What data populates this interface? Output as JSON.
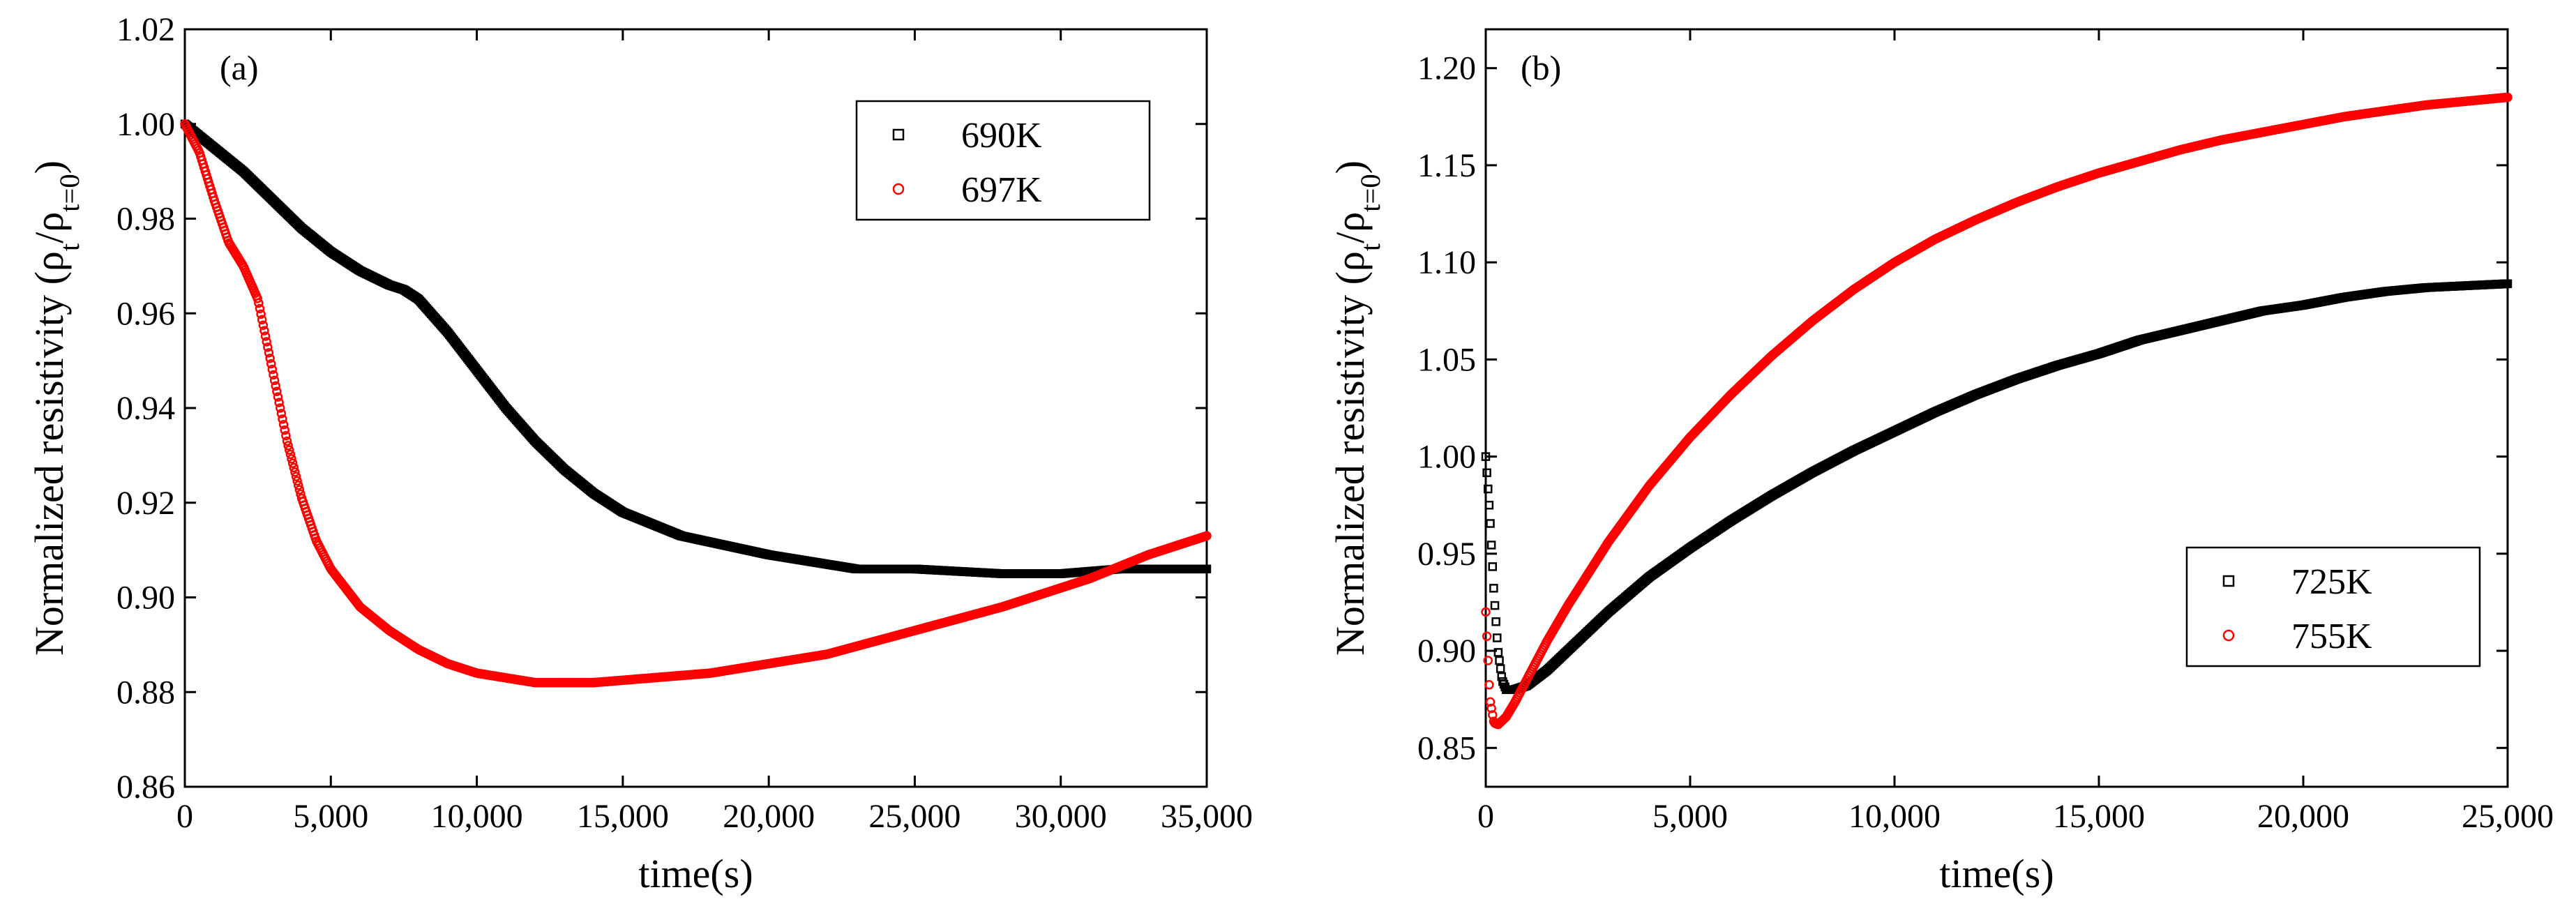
{
  "chart_data": [
    {
      "type": "scatter",
      "panel_label": "(a)",
      "xlabel": "time(s)",
      "ylabel": "Normalized resistivity (ρt/ρt=0)",
      "xlim": [
        0,
        35000
      ],
      "ylim": [
        0.86,
        1.02
      ],
      "x_ticks": [
        0,
        5000,
        10000,
        15000,
        20000,
        25000,
        30000,
        35000
      ],
      "x_tick_labels": [
        "0",
        "5,000",
        "10,000",
        "15,000",
        "20,000",
        "25,000",
        "30,000",
        "35,000"
      ],
      "y_ticks": [
        0.86,
        0.88,
        0.9,
        0.92,
        0.94,
        0.96,
        0.98,
        1.0,
        1.02
      ],
      "y_tick_labels": [
        "0.86",
        "0.88",
        "0.90",
        "0.92",
        "0.94",
        "0.96",
        "0.98",
        "1.00",
        "1.02"
      ],
      "legend_position": "top-right",
      "grid": false,
      "series": [
        {
          "name": "690K",
          "marker": "square",
          "color": "#000000",
          "x": [
            0,
            1000,
            2000,
            3000,
            4000,
            5000,
            6000,
            7000,
            7500,
            8000,
            9000,
            10000,
            11000,
            12000,
            13000,
            14000,
            15000,
            17000,
            20000,
            23000,
            25000,
            28000,
            30000,
            32000,
            35000
          ],
          "y": [
            1.0,
            0.995,
            0.99,
            0.984,
            0.978,
            0.973,
            0.969,
            0.966,
            0.965,
            0.963,
            0.956,
            0.948,
            0.94,
            0.933,
            0.927,
            0.922,
            0.918,
            0.913,
            0.909,
            0.906,
            0.906,
            0.905,
            0.905,
            0.906,
            0.906
          ]
        },
        {
          "name": "697K",
          "marker": "circle",
          "color": "#ff0000",
          "x": [
            0,
            500,
            1000,
            1500,
            2000,
            2500,
            3000,
            3500,
            4000,
            4500,
            5000,
            6000,
            7000,
            8000,
            9000,
            10000,
            12000,
            14000,
            16000,
            18000,
            20000,
            22000,
            25000,
            28000,
            31000,
            33000,
            35000
          ],
          "y": [
            1.0,
            0.994,
            0.984,
            0.975,
            0.97,
            0.963,
            0.948,
            0.933,
            0.921,
            0.912,
            0.906,
            0.898,
            0.893,
            0.889,
            0.886,
            0.884,
            0.882,
            0.882,
            0.883,
            0.884,
            0.886,
            0.888,
            0.893,
            0.898,
            0.904,
            0.909,
            0.913
          ]
        }
      ]
    },
    {
      "type": "scatter",
      "panel_label": "(b)",
      "xlabel": "time(s)",
      "ylabel": "Normalized resistivity (ρt/ρt=0)",
      "xlim": [
        0,
        25000
      ],
      "ylim": [
        0.83,
        1.22
      ],
      "x_ticks": [
        0,
        5000,
        10000,
        15000,
        20000,
        25000
      ],
      "x_tick_labels": [
        "0",
        "5,000",
        "10,000",
        "15,000",
        "20,000",
        "25,000"
      ],
      "y_ticks": [
        0.85,
        0.9,
        0.95,
        1.0,
        1.05,
        1.1,
        1.15,
        1.2
      ],
      "y_tick_labels": [
        "0.85",
        "0.90",
        "0.95",
        "1.00",
        "1.05",
        "1.10",
        "1.15",
        "1.20"
      ],
      "legend_position": "bottom-right",
      "grid": false,
      "series": [
        {
          "name": "725K",
          "marker": "square",
          "color": "#000000",
          "x": [
            0,
            100,
            200,
            300,
            400,
            500,
            700,
            1000,
            1500,
            2000,
            3000,
            4000,
            5000,
            6000,
            7000,
            8000,
            9000,
            10000,
            11000,
            12000,
            13000,
            14000,
            15000,
            16000,
            17000,
            18000,
            19000,
            20000,
            21000,
            22000,
            23000,
            24000,
            25000
          ],
          "y": [
            1.0,
            0.97,
            0.93,
            0.9,
            0.885,
            0.88,
            0.88,
            0.882,
            0.89,
            0.9,
            0.92,
            0.938,
            0.953,
            0.967,
            0.98,
            0.992,
            1.003,
            1.013,
            1.023,
            1.032,
            1.04,
            1.047,
            1.053,
            1.06,
            1.065,
            1.07,
            1.075,
            1.078,
            1.082,
            1.085,
            1.087,
            1.088,
            1.089
          ]
        },
        {
          "name": "755K",
          "marker": "circle",
          "color": "#ff0000",
          "x": [
            0,
            100,
            200,
            300,
            500,
            700,
            1000,
            1500,
            2000,
            3000,
            4000,
            5000,
            6000,
            7000,
            8000,
            9000,
            10000,
            11000,
            12000,
            13000,
            14000,
            15000,
            16000,
            17000,
            18000,
            19000,
            20000,
            21000,
            22000,
            23000,
            24000,
            25000
          ],
          "y": [
            0.92,
            0.875,
            0.863,
            0.862,
            0.866,
            0.873,
            0.885,
            0.905,
            0.923,
            0.956,
            0.985,
            1.01,
            1.032,
            1.052,
            1.07,
            1.086,
            1.1,
            1.112,
            1.122,
            1.131,
            1.139,
            1.146,
            1.152,
            1.158,
            1.163,
            1.167,
            1.171,
            1.175,
            1.178,
            1.181,
            1.183,
            1.185
          ]
        }
      ]
    }
  ]
}
